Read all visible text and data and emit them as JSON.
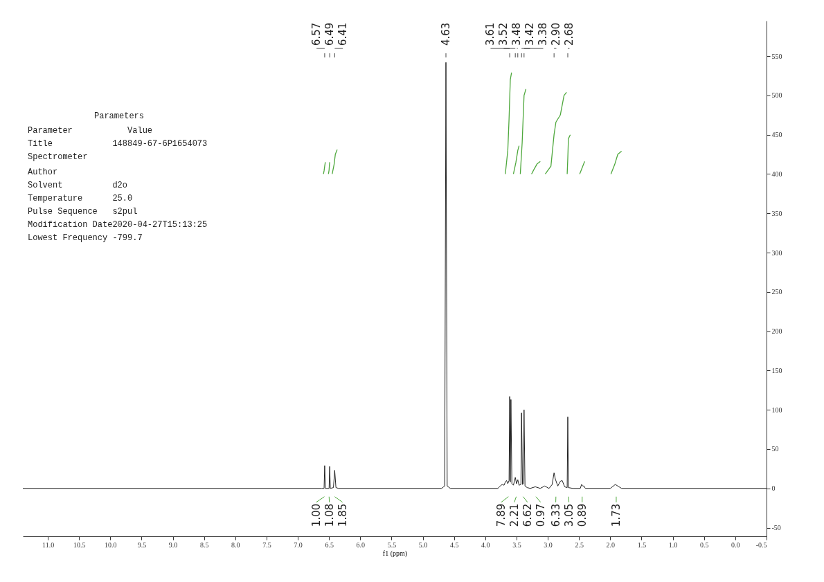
{
  "chart_data": [
    {
      "type": "line",
      "xlabel": "f1 (ppm)",
      "xlim": [
        11.4,
        -0.5
      ],
      "ylim": [
        -61,
        595
      ],
      "xticks": [
        {
          "value": 11,
          "label": "11.0"
        },
        10.5,
        {
          "value": 10,
          "label": "10.0"
        },
        9.5,
        {
          "value": 9,
          "label": "9.0"
        },
        8.5,
        {
          "value": 8,
          "label": "8.0"
        },
        7.5,
        {
          "value": 7,
          "label": "7.0"
        },
        6.5,
        {
          "value": 6,
          "label": "6.0"
        },
        5.5,
        {
          "value": 5,
          "label": "5.0"
        },
        4.5,
        {
          "value": 4,
          "label": "4.0"
        },
        3.5,
        {
          "value": 3,
          "label": "3.0"
        },
        2.5,
        {
          "value": 2,
          "label": "2.0"
        },
        1.5,
        {
          "value": 1,
          "label": "1.0"
        },
        0.5,
        {
          "value": 0,
          "label": "0.0"
        },
        -0.5
      ],
      "yticks": [
        -50,
        0,
        50,
        100,
        150,
        200,
        250,
        300,
        350,
        400,
        450,
        500,
        550
      ],
      "series": [
        {
          "color": "#222222",
          "x": [
            11.4,
            6.62,
            6.58,
            6.57,
            6.56,
            6.5,
            6.49,
            6.48,
            6.43,
            6.41,
            6.39,
            6.35,
            4.7,
            4.65,
            4.63,
            4.61,
            4.56,
            3.8,
            3.76,
            3.73,
            3.7,
            3.68,
            3.66,
            3.64,
            3.62,
            3.61,
            3.6,
            3.59,
            3.575,
            3.55,
            3.52,
            3.5,
            3.48,
            3.46,
            3.43,
            3.42,
            3.405,
            3.39,
            3.38,
            3.365,
            3.33,
            3.28,
            3.2,
            3.12,
            3.05,
            2.98,
            2.93,
            2.9,
            2.88,
            2.84,
            2.8,
            2.77,
            2.73,
            2.69,
            2.68,
            2.67,
            2.6,
            2.48,
            2.46,
            2.44,
            2.42,
            2.4,
            2,
            1.95,
            1.92,
            1.88,
            1.82,
            -0.5
          ],
          "values": [
            0,
            0,
            0,
            29,
            0,
            0,
            28,
            0,
            1,
            23,
            1,
            0,
            0,
            3,
            542,
            3,
            0,
            0,
            3,
            5,
            4,
            8,
            10,
            6,
            10,
            117,
            8,
            113,
            6,
            4,
            14,
            6,
            11,
            4,
            5,
            96,
            5,
            6,
            100,
            3,
            1,
            0,
            2,
            0,
            3,
            0,
            5,
            20,
            12,
            3,
            9,
            10,
            2,
            1,
            91,
            1,
            0,
            0,
            5,
            3,
            3,
            0,
            0,
            3,
            5,
            3,
            0,
            0
          ]
        },
        {
          "color": "#4fa83d",
          "x": [
            6.59,
            6.58,
            6.57,
            6.56,
            null,
            6.51,
            6.5,
            6.495,
            6.49,
            null,
            6.45,
            6.42,
            6.4,
            6.37,
            null,
            3.68,
            3.64,
            3.62,
            3.6,
            3.58,
            null,
            3.55,
            3.51,
            3.48,
            3.46,
            null,
            3.44,
            3.41,
            3.38,
            3.35,
            null,
            3.26,
            3.22,
            3.17,
            3.12,
            null,
            3.04,
            2.95,
            2.9,
            2.87,
            2.8,
            2.74,
            2.7,
            null,
            2.69,
            2.68,
            2.67,
            2.64,
            null,
            2.49,
            2.46,
            2.43,
            2.41,
            null,
            1.99,
            1.93,
            1.88,
            1.82
          ],
          "values": [
            400,
            404,
            410,
            415,
            null,
            400,
            405,
            411,
            415,
            null,
            400,
            412,
            425,
            431,
            null,
            400,
            430,
            470,
            520,
            529,
            null,
            400,
            415,
            430,
            436,
            null,
            400,
            440,
            500,
            508,
            null,
            400,
            406,
            413,
            416,
            null,
            400,
            410,
            450,
            466,
            475,
            500,
            504,
            null,
            400,
            420,
            445,
            450,
            null,
            400,
            406,
            412,
            416,
            null,
            400,
            412,
            425,
            429
          ]
        }
      ],
      "annotations": [
        {
          "text": "6.57",
          "x": 6.57
        },
        {
          "text": "6.49",
          "x": 6.49
        },
        {
          "text": "6.41",
          "x": 6.41
        },
        {
          "text": "4.63",
          "x": 4.63
        },
        {
          "text": "3.61",
          "x": 3.61
        },
        {
          "text": "3.52",
          "x": 3.52
        },
        {
          "text": "3.48",
          "x": 3.48
        },
        {
          "text": "3.42",
          "x": 3.42
        },
        {
          "text": "3.38",
          "x": 3.38
        },
        {
          "text": "2.90",
          "x": 2.9
        },
        {
          "text": "2.68",
          "x": 2.68
        },
        "1.00",
        "1.08",
        "1.85",
        "7.89",
        "2.21",
        "6.62",
        "0.97",
        "6.33",
        "3.05",
        "0.89",
        "1.73"
      ]
    },
    {
      "type": "other",
      "title": "Parameters",
      "annotations": [
        "    Parameter           Value",
        "Title            148849-67-6P1654073",
        "Spectrometer",
        "Author",
        "Solvent          d2o",
        "Temperature      25.0",
        "Pulse Sequence   s2pul",
        "Modification Date2020-04-27T15:13:25",
        "Lowest Frequency -799.7"
      ]
    }
  ]
}
